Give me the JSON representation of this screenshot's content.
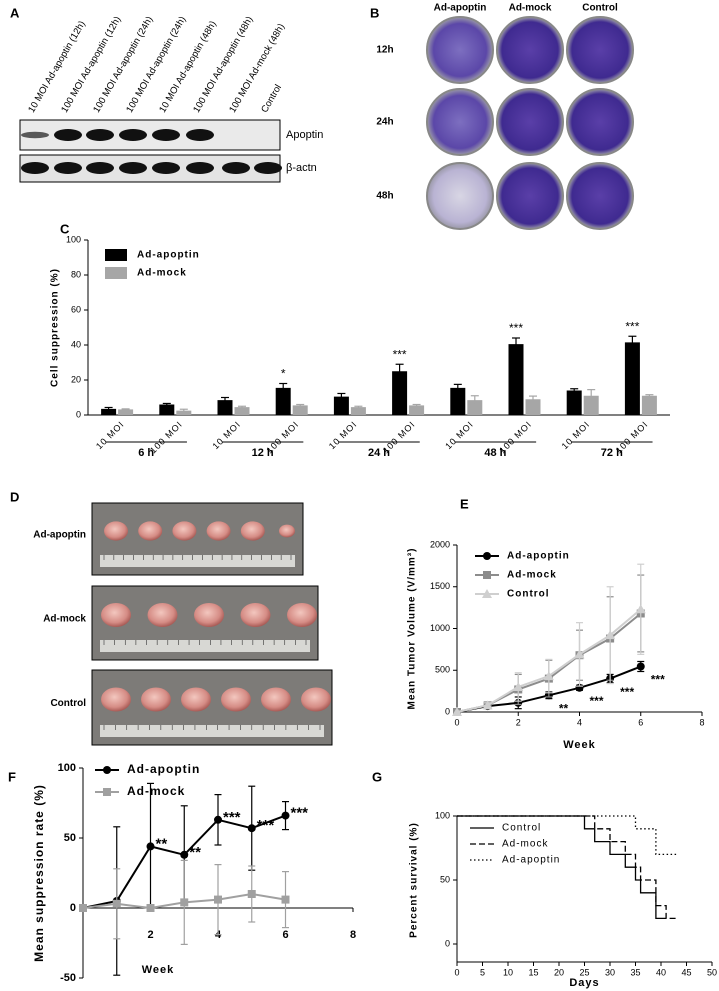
{
  "blot": {
    "label": "A",
    "lanes": [
      "10 MOI Ad-apoptin (12h)",
      "100 MOI Ad-apoptin (12h)",
      "100 MOI Ad-apoptin (24h)",
      "100 MOI Ad-apoptin (24h)",
      "10 MOI Ad-apoptin (48h)",
      "100 MOI Ad-apoptin (48h)",
      "100 MOI Ad-mock (48h)",
      "Control"
    ],
    "bands": [
      "Apoptin",
      "β-actn"
    ]
  },
  "plates": {
    "label": "B",
    "columns": [
      "Ad-apoptin",
      "Ad-mock",
      "Control"
    ],
    "rows": [
      "12h",
      "24h",
      "48h"
    ]
  },
  "tumors": {
    "label": "D",
    "rows": [
      "Ad-apoptin",
      "Ad-mock",
      "Control"
    ]
  },
  "chart_data": [
    {
      "panel": "C",
      "type": "bar",
      "ylabel": "Cell suppression (%)",
      "categories": [
        "10 MOI",
        "100 MOI",
        "10 MOI",
        "100 MOI",
        "10 MOI",
        "100 MOI",
        "10 MOI",
        "100 MOI",
        "10 MOI",
        "100 MOI"
      ],
      "groups": [
        "6 h",
        "12 h",
        "24 h",
        "48 h",
        "72 h"
      ],
      "series": [
        {
          "name": "Ad-apoptin",
          "color": "#000000",
          "values": [
            3.5,
            6,
            8.5,
            15.5,
            10.5,
            25,
            15.5,
            40.5,
            14,
            41.5
          ],
          "errors": [
            0.8,
            0.6,
            1.5,
            2.5,
            1.8,
            4,
            2,
            3.5,
            1,
            3.5
          ],
          "significance": [
            null,
            null,
            null,
            "*",
            null,
            "***",
            null,
            "***",
            null,
            "***"
          ]
        },
        {
          "name": "Ad-mock",
          "color": "#a6a6a6",
          "values": [
            3.2,
            2.5,
            4.5,
            5.5,
            4.5,
            5.5,
            8.5,
            9,
            11,
            11
          ],
          "errors": [
            0.3,
            0.8,
            0.5,
            0.5,
            0.5,
            0.5,
            2.5,
            1.8,
            3.5,
            0.6
          ]
        }
      ],
      "ylim": [
        0,
        100
      ],
      "yticks": [
        0,
        20,
        40,
        60,
        80,
        100
      ],
      "legend": "upper left"
    },
    {
      "panel": "E",
      "type": "line",
      "xlabel": "Week",
      "ylabel": "Mean Tumor Volume (V/mm³)",
      "x": [
        0,
        1,
        2,
        3,
        4,
        5,
        6
      ],
      "series": [
        {
          "name": "Ad-apoptin",
          "color": "#000000",
          "marker": "circle",
          "values": [
            0,
            70,
            110,
            200,
            290,
            400,
            545
          ],
          "errors": [
            0,
            20,
            70,
            40,
            30,
            50,
            60
          ],
          "significance": [
            null,
            null,
            null,
            "**",
            "***",
            "***",
            "***"
          ]
        },
        {
          "name": "Ad-mock",
          "color": "#8c8c8c",
          "marker": "square",
          "values": [
            0,
            80,
            270,
            400,
            680,
            880,
            1180
          ],
          "errors": [
            0,
            30,
            180,
            220,
            300,
            500,
            460
          ]
        },
        {
          "name": "Control",
          "color": "#cfcfcf",
          "marker": "triangle",
          "values": [
            0,
            80,
            300,
            430,
            690,
            920,
            1230
          ],
          "errors": [
            0,
            30,
            170,
            200,
            380,
            580,
            540
          ]
        }
      ],
      "xlim": [
        0,
        8
      ],
      "xticks": [
        0,
        2,
        4,
        6,
        8
      ],
      "ylim": [
        0,
        2000
      ],
      "yticks": [
        0,
        500,
        1000,
        1500,
        2000
      ],
      "legend": "upper left"
    },
    {
      "panel": "F",
      "type": "line",
      "xlabel": "Week",
      "ylabel": "Mean suppression rate (%)",
      "x": [
        0,
        1,
        2,
        3,
        4,
        5,
        6
      ],
      "series": [
        {
          "name": "Ad-apoptin",
          "color": "#000000",
          "marker": "circle",
          "values": [
            0,
            5,
            44,
            38,
            63,
            57,
            66
          ],
          "errors": [
            0,
            53,
            45,
            35,
            18,
            30,
            10
          ],
          "significance": [
            null,
            null,
            "**",
            "**",
            "***",
            "***",
            "***"
          ]
        },
        {
          "name": "Ad-mock",
          "color": "#a0a0a0",
          "marker": "square",
          "values": [
            0,
            3,
            0,
            4,
            6,
            10,
            6
          ],
          "errors": [
            0,
            25,
            0,
            30,
            25,
            20,
            20
          ]
        }
      ],
      "xlim": [
        0,
        8
      ],
      "xticks": [
        2,
        4,
        6,
        8
      ],
      "ylim": [
        -50,
        100
      ],
      "yticks": [
        -50,
        0,
        50,
        100
      ],
      "legend": "upper left"
    },
    {
      "panel": "G",
      "type": "step",
      "xlabel": "Days",
      "ylabel": "Percent survival (%)",
      "series": [
        {
          "name": "Control",
          "color": "#000000",
          "style": "solid",
          "x": [
            0,
            25,
            27,
            30,
            33,
            35,
            36,
            39,
            41
          ],
          "values": [
            100,
            90,
            80,
            70,
            60,
            50,
            40,
            20,
            20
          ]
        },
        {
          "name": "Ad-mock",
          "color": "#000000",
          "style": "dashed",
          "x": [
            0,
            27,
            30,
            33,
            35,
            36,
            39,
            41,
            43
          ],
          "values": [
            100,
            90,
            80,
            70,
            60,
            50,
            30,
            20,
            20
          ]
        },
        {
          "name": "Ad-apoptin",
          "color": "#000000",
          "style": "dotted",
          "x": [
            0,
            35,
            39,
            41,
            43
          ],
          "values": [
            100,
            90,
            70,
            70,
            70
          ]
        }
      ],
      "xlim": [
        0,
        50
      ],
      "xticks": [
        0,
        5,
        10,
        15,
        20,
        25,
        30,
        35,
        40,
        45,
        50
      ],
      "ylim": [
        0,
        100
      ],
      "yticks": [
        0,
        50,
        100
      ],
      "legend": "upper left"
    }
  ]
}
